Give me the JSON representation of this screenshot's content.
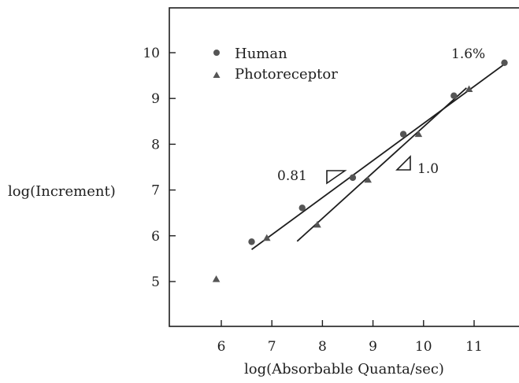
{
  "chart_data": {
    "type": "scatter",
    "xlabel": "log(Absorbable Quanta/sec)",
    "ylabel": "log(Increment)",
    "xlim": [
      5.0,
      11.9
    ],
    "ylim": [
      4.0,
      11.0
    ],
    "x_ticks": [
      6,
      7,
      8,
      9,
      10,
      11
    ],
    "x_tick_labels": [
      "6",
      "7",
      "8",
      "9",
      "10",
      "11"
    ],
    "y_ticks": [
      5,
      6,
      7,
      8,
      9,
      10
    ],
    "y_tick_labels": [
      "5",
      "6",
      "7",
      "8",
      "9",
      "10"
    ],
    "legend_position": "top-left",
    "legend": [
      {
        "label": "Human",
        "marker": "circle"
      },
      {
        "label": "Photoreceptor",
        "marker": "triangle"
      }
    ],
    "series": [
      {
        "name": "Human",
        "marker": "circle",
        "points": [
          {
            "x": 6.6,
            "y": 5.87
          },
          {
            "x": 7.6,
            "y": 6.61
          },
          {
            "x": 8.6,
            "y": 7.27
          },
          {
            "x": 9.6,
            "y": 8.22
          },
          {
            "x": 10.6,
            "y": 9.06
          },
          {
            "x": 11.6,
            "y": 9.78
          }
        ],
        "fit_line": {
          "x": [
            6.6,
            11.6
          ],
          "y": [
            5.7,
            9.75
          ],
          "slope": 0.81
        }
      },
      {
        "name": "Photoreceptor",
        "marker": "triangle",
        "points": [
          {
            "x": 5.9,
            "y": 5.05
          },
          {
            "x": 6.9,
            "y": 5.95
          },
          {
            "x": 7.9,
            "y": 6.24
          },
          {
            "x": 8.9,
            "y": 7.22
          },
          {
            "x": 9.9,
            "y": 8.22
          },
          {
            "x": 10.9,
            "y": 9.2
          }
        ],
        "fit_line": {
          "x": [
            7.5,
            10.85
          ],
          "y": [
            5.88,
            9.23
          ],
          "slope": 1.0
        }
      }
    ],
    "annotations": [
      {
        "text": "1.6%",
        "x": 11.0,
        "y": 9.95
      },
      {
        "text": "0.81",
        "x": 7.65,
        "y": 7.3,
        "icon": "slope-triangle-icon"
      },
      {
        "text": "1.0",
        "x": 9.95,
        "y": 7.6,
        "icon": "slope-triangle-icon"
      }
    ],
    "colors": {
      "ink": "#1e1e1e",
      "marker": "#555555",
      "background": "#ffffff"
    }
  }
}
